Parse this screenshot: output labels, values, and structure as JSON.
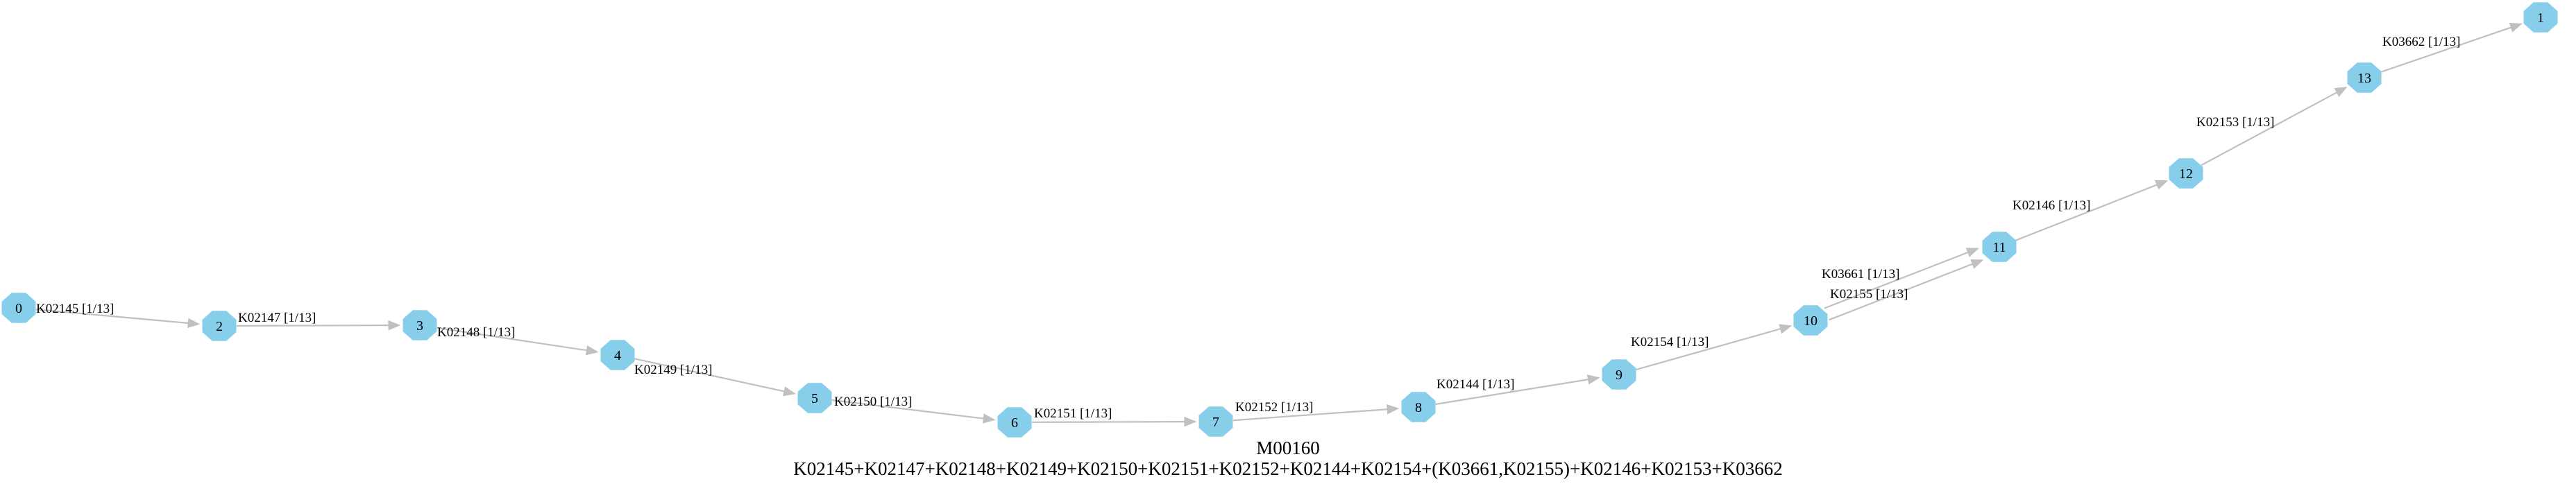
{
  "diagram": {
    "module_id": "M00160",
    "definition": "K02145+K02147+K02148+K02149+K02150+K02151+K02152+K02144+K02154+(K03661,K02155)+K02146+K02153+K03662",
    "nodes": [
      "0",
      "2",
      "3",
      "4",
      "5",
      "6",
      "7",
      "8",
      "9",
      "10",
      "11",
      "12",
      "13",
      "1"
    ],
    "edges": [
      {
        "from": "0",
        "to": "2",
        "label": "K02145 [1/13]"
      },
      {
        "from": "2",
        "to": "3",
        "label": "K02147 [1/13]"
      },
      {
        "from": "3",
        "to": "4",
        "label": "K02148 [1/13]"
      },
      {
        "from": "4",
        "to": "5",
        "label": "K02149 [1/13]"
      },
      {
        "from": "5",
        "to": "6",
        "label": "K02150 [1/13]"
      },
      {
        "from": "6",
        "to": "7",
        "label": "K02151 [1/13]"
      },
      {
        "from": "7",
        "to": "8",
        "label": "K02152 [1/13]"
      },
      {
        "from": "8",
        "to": "9",
        "label": "K02144 [1/13]"
      },
      {
        "from": "9",
        "to": "10",
        "label": "K02154 [1/13]"
      },
      {
        "from": "10",
        "to": "11",
        "label": "K03661 [1/13]"
      },
      {
        "from": "10",
        "to": "11",
        "label": "K02155 [1/13]"
      },
      {
        "from": "11",
        "to": "12",
        "label": "K02146 [1/13]"
      },
      {
        "from": "12",
        "to": "13",
        "label": "K02153 [1/13]"
      },
      {
        "from": "13",
        "to": "1",
        "label": "K03662 [1/13]"
      }
    ]
  },
  "colors": {
    "node_fill": "#87ceeb",
    "edge": "#c0c0c0",
    "text": "#000000"
  }
}
